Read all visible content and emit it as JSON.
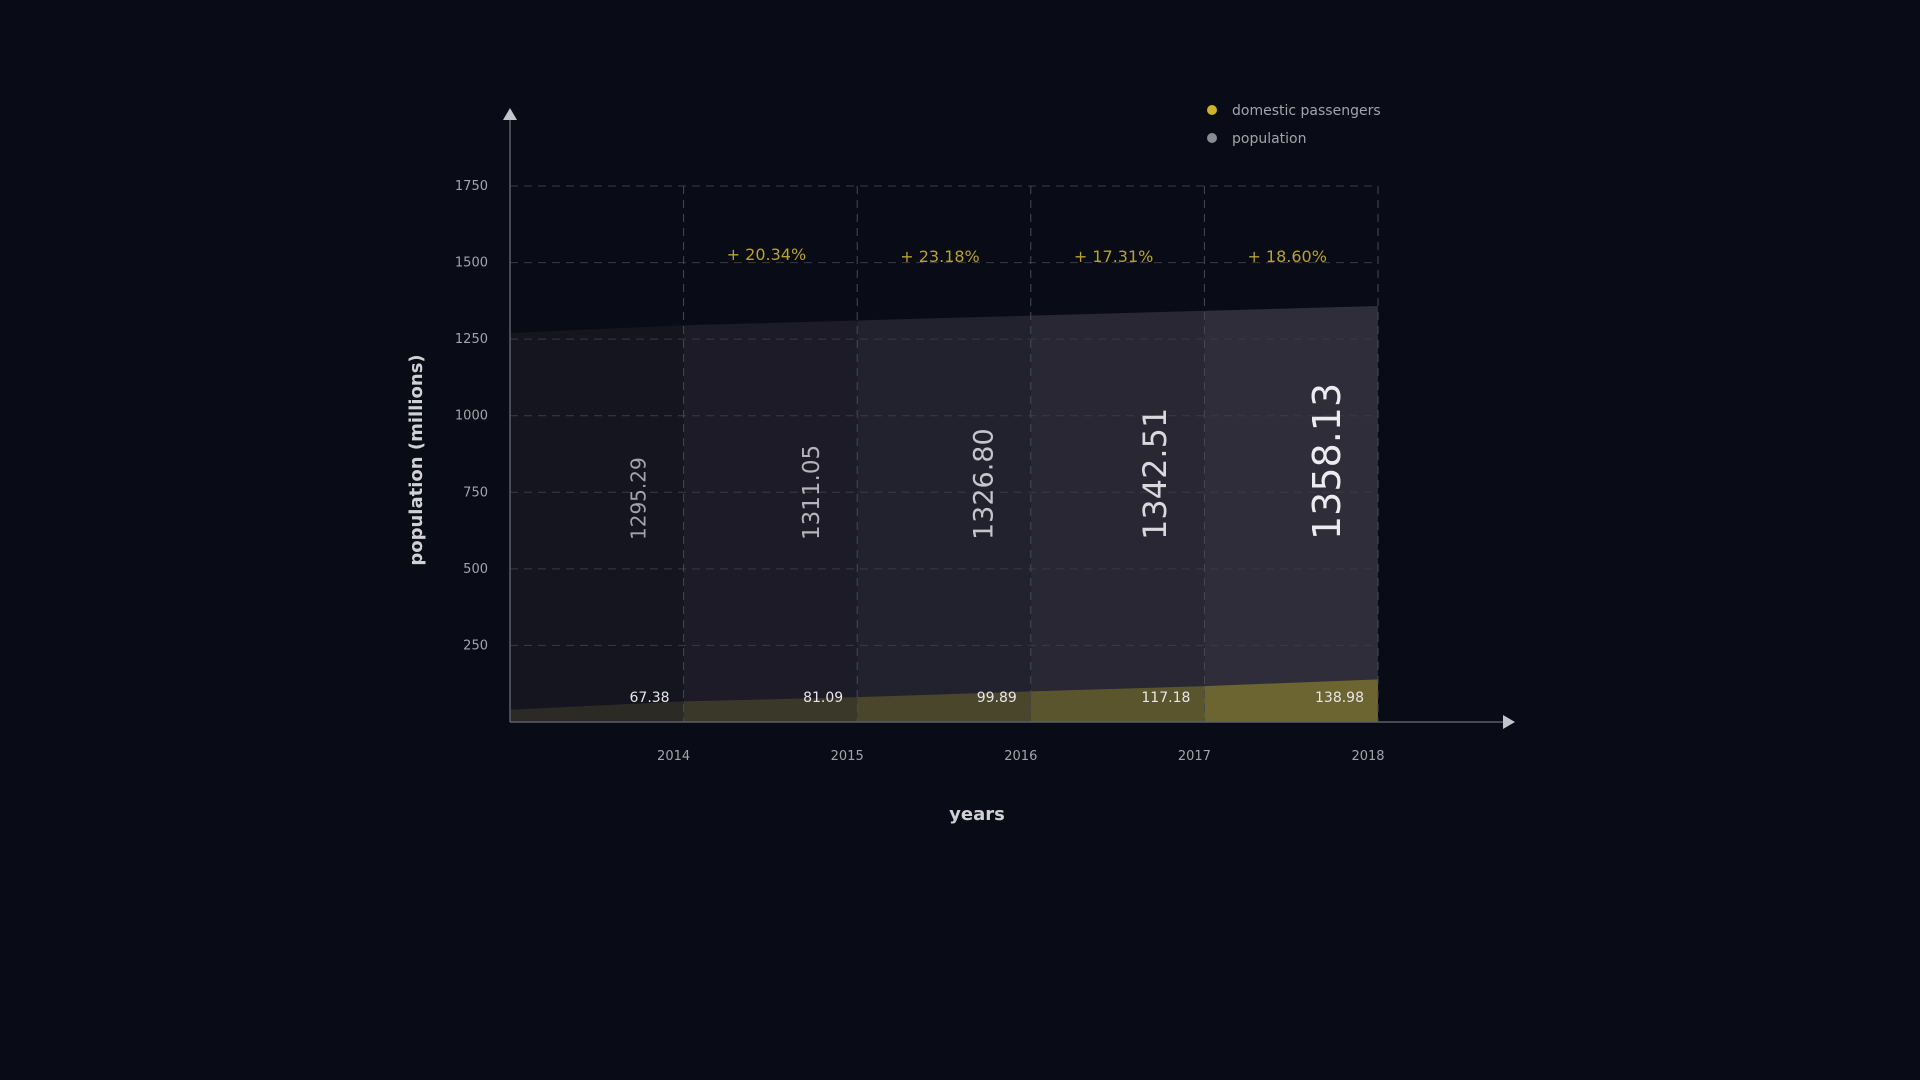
{
  "chart_data": {
    "type": "area",
    "title": "",
    "xlabel": "years",
    "ylabel": "population (millions)",
    "ylim": [
      0,
      1750
    ],
    "yticks": [
      250,
      500,
      750,
      1000,
      1250,
      1500,
      1750
    ],
    "categories": [
      "2014",
      "2015",
      "2016",
      "2017",
      "2018"
    ],
    "grid": true,
    "legend_position": "top-right",
    "series": [
      {
        "name": "domestic passengers",
        "color": "#c9b42a",
        "values": [
          67.38,
          81.09,
          99.89,
          117.18,
          138.98
        ],
        "labels": [
          "67.38",
          "81.09",
          "99.89",
          "117.18",
          "138.98"
        ],
        "start_value": 40
      },
      {
        "name": "population",
        "color": "#8a8a92",
        "values": [
          1295.29,
          1311.05,
          1326.8,
          1342.51,
          1358.13
        ],
        "labels": [
          "1295.29",
          "1311.05",
          "1326.80",
          "1342.51",
          "1358.13"
        ],
        "start_value": 1270
      }
    ],
    "annotations": [
      "+ 20.34%",
      "+ 23.18%",
      "+ 17.31%",
      "+ 18.60%"
    ]
  }
}
